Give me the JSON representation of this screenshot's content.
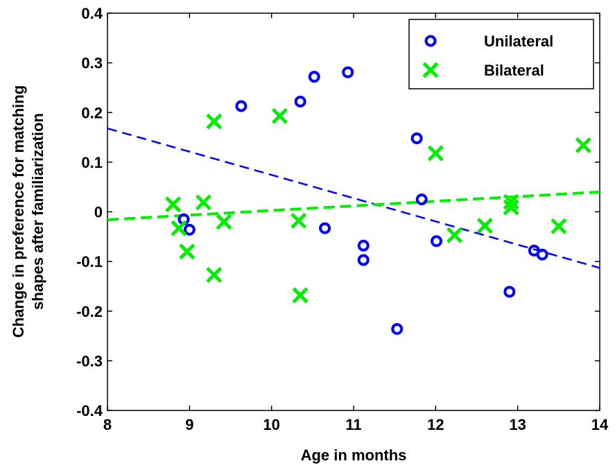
{
  "chart_data": {
    "type": "scatter",
    "xlabel": "Age in months",
    "ylabel_lines": [
      "Change in preference for matching",
      "shapes after familiarization"
    ],
    "xlim": [
      8,
      14
    ],
    "ylim": [
      -0.4,
      0.4
    ],
    "x_ticks": [
      8,
      9,
      10,
      11,
      12,
      13,
      14
    ],
    "y_ticks": [
      -0.4,
      -0.3,
      -0.2,
      -0.1,
      0,
      0.1,
      0.2,
      0.3,
      0.4
    ],
    "x_tick_labels": [
      "8",
      "9",
      "10",
      "11",
      "12",
      "13",
      "14"
    ],
    "y_tick_labels": [
      "-0.4",
      "-0.3",
      "-0.2",
      "-0.1",
      "0",
      "0.1",
      "0.2",
      "0.3",
      "0.4"
    ],
    "grid": false,
    "legend_position": "top-right",
    "series": [
      {
        "name": "Unilateral",
        "marker": "circle",
        "color": "#0000ff",
        "points": [
          [
            8.93,
            -0.015
          ],
          [
            9.0,
            -0.036
          ],
          [
            9.63,
            0.213
          ],
          [
            10.35,
            0.222
          ],
          [
            10.52,
            0.272
          ],
          [
            10.65,
            -0.033
          ],
          [
            10.93,
            0.281
          ],
          [
            11.12,
            -0.068
          ],
          [
            11.12,
            -0.097
          ],
          [
            11.53,
            -0.236
          ],
          [
            11.77,
            0.148
          ],
          [
            11.83,
            0.025
          ],
          [
            12.01,
            -0.059
          ],
          [
            12.9,
            -0.161
          ],
          [
            13.2,
            -0.078
          ],
          [
            13.3,
            -0.086
          ]
        ],
        "fit": {
          "x": [
            8,
            14
          ],
          "y": [
            0.168,
            -0.113
          ]
        }
      },
      {
        "name": "Bilateral",
        "marker": "x",
        "color": "#00ee00",
        "points": [
          [
            8.8,
            0.015
          ],
          [
            8.87,
            -0.033
          ],
          [
            8.97,
            -0.08
          ],
          [
            9.17,
            0.019
          ],
          [
            9.3,
            0.182
          ],
          [
            9.3,
            -0.127
          ],
          [
            9.42,
            -0.02
          ],
          [
            10.1,
            0.193
          ],
          [
            10.33,
            -0.018
          ],
          [
            10.35,
            -0.168
          ],
          [
            12.0,
            0.118
          ],
          [
            12.23,
            -0.047
          ],
          [
            12.6,
            -0.028
          ],
          [
            12.92,
            0.02
          ],
          [
            12.92,
            0.009
          ],
          [
            13.5,
            -0.029
          ],
          [
            13.8,
            0.134
          ]
        ],
        "fit": {
          "x": [
            8,
            14
          ],
          "y": [
            -0.016,
            0.04
          ]
        }
      }
    ]
  }
}
